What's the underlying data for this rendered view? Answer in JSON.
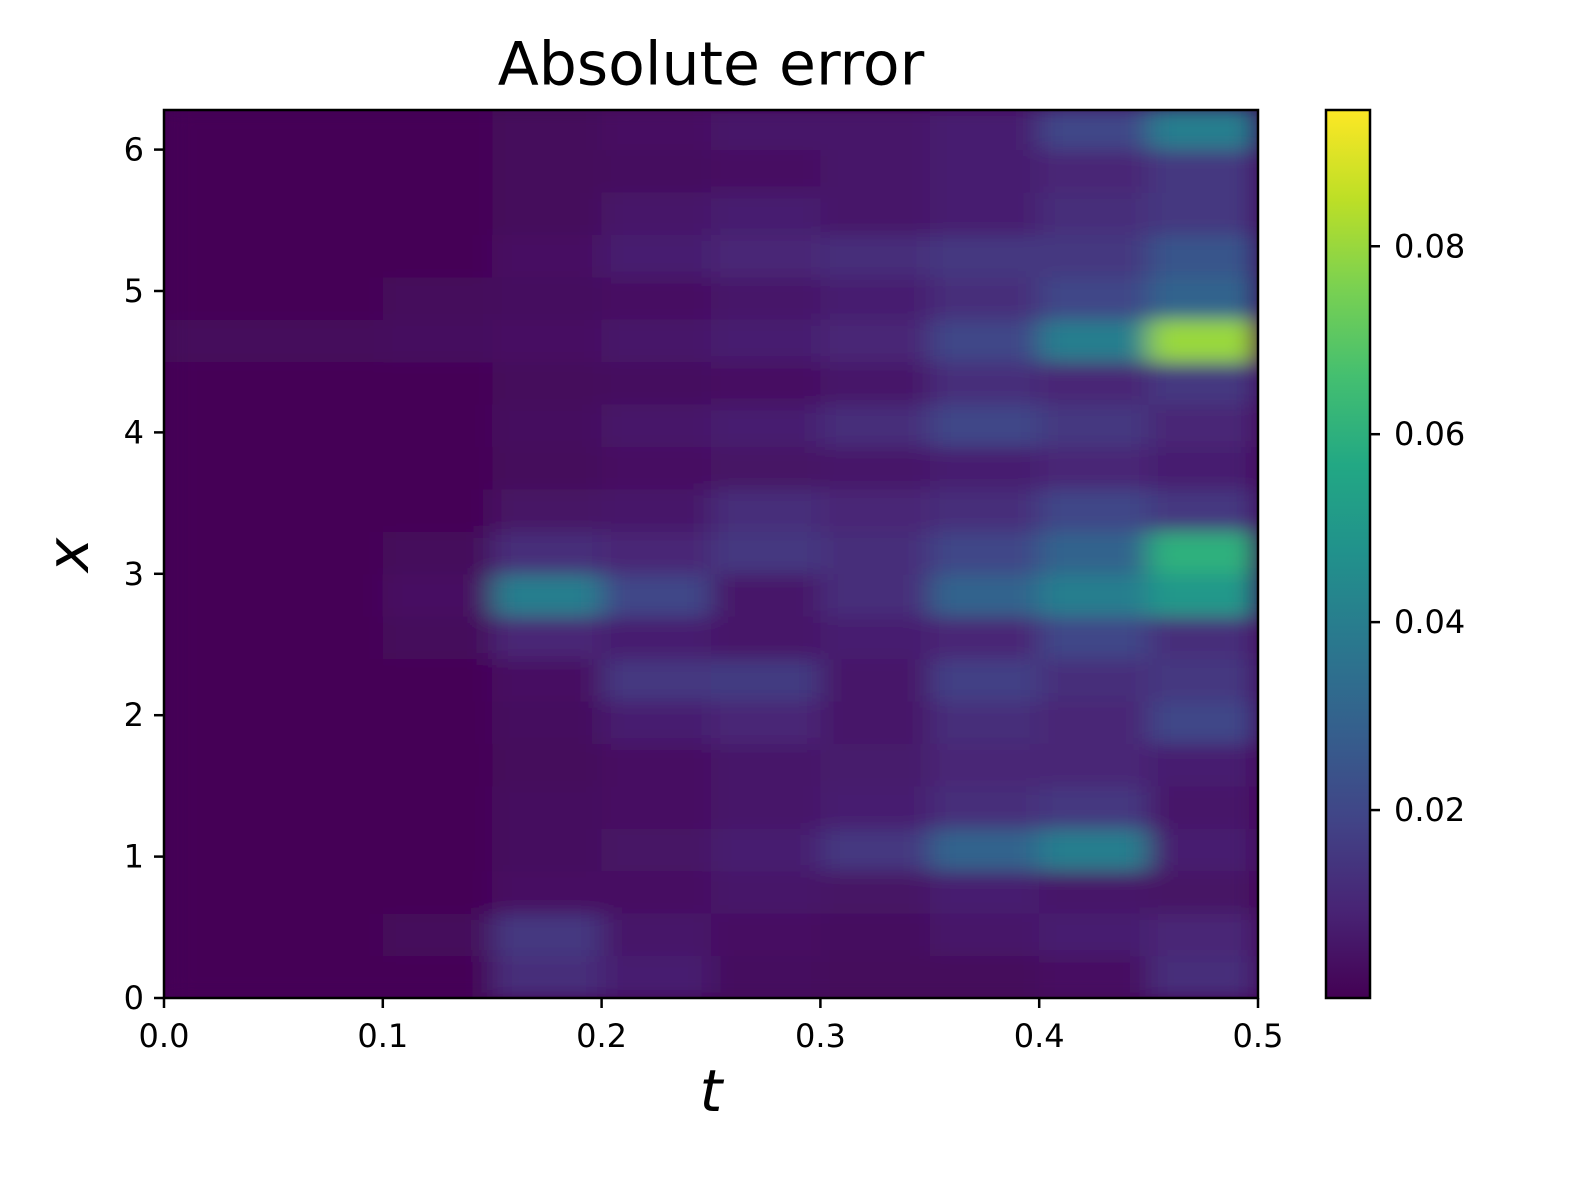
{
  "chart_data": {
    "type": "heatmap",
    "title": "Absolute error",
    "x_label": "t",
    "y_label": "x",
    "colormap": "viridis",
    "t": [
      0.025,
      0.075,
      0.125,
      0.175,
      0.225,
      0.275,
      0.325,
      0.375,
      0.425,
      0.475
    ],
    "x": [
      0.15,
      0.45,
      0.75,
      1.05,
      1.35,
      1.65,
      1.95,
      2.25,
      2.55,
      2.85,
      3.15,
      3.45,
      3.75,
      4.05,
      4.35,
      4.65,
      4.95,
      5.25,
      5.55,
      5.85,
      6.15
    ],
    "z": [
      [
        0.001,
        0.001,
        0.001,
        0.012,
        0.008,
        0.003,
        0.002,
        0.002,
        0.004,
        0.012
      ],
      [
        0.001,
        0.001,
        0.002,
        0.015,
        0.006,
        0.004,
        0.003,
        0.006,
        0.008,
        0.01
      ],
      [
        0.001,
        0.001,
        0.001,
        0.004,
        0.004,
        0.006,
        0.005,
        0.008,
        0.006,
        0.005
      ],
      [
        0.001,
        0.001,
        0.001,
        0.003,
        0.005,
        0.008,
        0.015,
        0.03,
        0.04,
        0.008
      ],
      [
        0.001,
        0.001,
        0.001,
        0.003,
        0.004,
        0.006,
        0.008,
        0.012,
        0.015,
        0.006
      ],
      [
        0.001,
        0.001,
        0.001,
        0.002,
        0.004,
        0.006,
        0.007,
        0.01,
        0.01,
        0.008
      ],
      [
        0.001,
        0.001,
        0.001,
        0.003,
        0.008,
        0.01,
        0.006,
        0.012,
        0.01,
        0.02
      ],
      [
        0.001,
        0.001,
        0.001,
        0.004,
        0.015,
        0.016,
        0.006,
        0.018,
        0.012,
        0.015
      ],
      [
        0.001,
        0.001,
        0.002,
        0.01,
        0.008,
        0.006,
        0.008,
        0.01,
        0.02,
        0.012
      ],
      [
        0.001,
        0.001,
        0.004,
        0.04,
        0.02,
        0.006,
        0.012,
        0.03,
        0.04,
        0.05
      ],
      [
        0.001,
        0.001,
        0.002,
        0.012,
        0.01,
        0.015,
        0.012,
        0.02,
        0.03,
        0.06
      ],
      [
        0.001,
        0.001,
        0.001,
        0.005,
        0.006,
        0.012,
        0.01,
        0.012,
        0.02,
        0.015
      ],
      [
        0.001,
        0.001,
        0.001,
        0.002,
        0.004,
        0.005,
        0.006,
        0.008,
        0.01,
        0.008
      ],
      [
        0.001,
        0.001,
        0.001,
        0.003,
        0.006,
        0.008,
        0.012,
        0.02,
        0.015,
        0.01
      ],
      [
        0.001,
        0.001,
        0.001,
        0.002,
        0.003,
        0.004,
        0.006,
        0.012,
        0.01,
        0.015
      ],
      [
        0.002,
        0.002,
        0.003,
        0.004,
        0.006,
        0.008,
        0.01,
        0.02,
        0.04,
        0.08
      ],
      [
        0.001,
        0.001,
        0.002,
        0.003,
        0.004,
        0.006,
        0.008,
        0.012,
        0.02,
        0.03
      ],
      [
        0.001,
        0.001,
        0.001,
        0.004,
        0.008,
        0.01,
        0.012,
        0.015,
        0.015,
        0.025
      ],
      [
        0.001,
        0.001,
        0.001,
        0.002,
        0.006,
        0.008,
        0.006,
        0.008,
        0.012,
        0.015
      ],
      [
        0.001,
        0.001,
        0.001,
        0.002,
        0.003,
        0.004,
        0.006,
        0.008,
        0.01,
        0.015
      ],
      [
        0.001,
        0.001,
        0.001,
        0.002,
        0.004,
        0.006,
        0.006,
        0.008,
        0.02,
        0.04
      ]
    ],
    "xlim": [
      0,
      0.5
    ],
    "xticks": [
      {
        "value": 0,
        "label": "0.0"
      },
      0.1,
      0.2,
      0.3,
      0.4,
      0.5
    ],
    "ylim": [
      0,
      6.28
    ],
    "yticks": [
      0,
      1,
      2,
      3,
      4,
      5,
      6
    ],
    "clim": [
      0,
      0.0945
    ],
    "cticks": [
      0.02,
      0.04,
      0.06,
      0.08
    ]
  }
}
